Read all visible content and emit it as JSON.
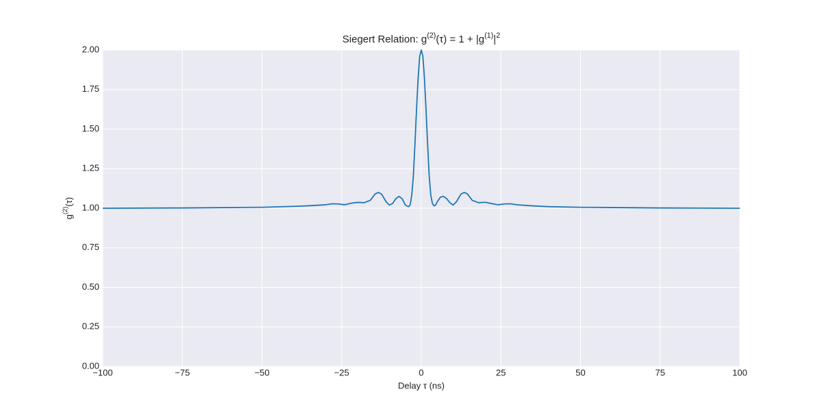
{
  "chart_data": {
    "type": "line",
    "title": [
      "Siegert Relation: g",
      "(2)",
      "(τ) = 1 + |g",
      "(1)",
      "|",
      "2"
    ],
    "x_label": "Delay τ (ns)",
    "y_label": [
      "g",
      "(2)",
      "(τ)"
    ],
    "x": [
      -100,
      -75,
      -50,
      -40,
      -35,
      -30,
      -28,
      -26,
      -24,
      -22,
      -20,
      -18,
      -16,
      -14.5,
      -13.5,
      -12.5,
      -11,
      -10,
      -9,
      -8,
      -7,
      -6,
      -5,
      -4,
      -3.5,
      -3,
      -2.5,
      -2,
      -1.5,
      -1,
      -0.5,
      0,
      0.5,
      1,
      1.5,
      2,
      2.5,
      3,
      3.5,
      4,
      4.5,
      5,
      6,
      7,
      8,
      9,
      10,
      11,
      12.5,
      13.5,
      14.5,
      16,
      18,
      20,
      22,
      24,
      26,
      28,
      30,
      35,
      40,
      50,
      75,
      100
    ],
    "series": [
      {
        "color": "#1f77b4",
        "values": [
          1.0,
          1.002,
          1.006,
          1.012,
          1.016,
          1.022,
          1.028,
          1.027,
          1.022,
          1.032,
          1.037,
          1.035,
          1.05,
          1.09,
          1.1,
          1.09,
          1.04,
          1.02,
          1.03,
          1.06,
          1.075,
          1.06,
          1.02,
          1.01,
          1.02,
          1.08,
          1.2,
          1.4,
          1.62,
          1.82,
          1.96,
          2.0,
          1.96,
          1.82,
          1.62,
          1.4,
          1.2,
          1.08,
          1.03,
          1.015,
          1.02,
          1.04,
          1.07,
          1.075,
          1.06,
          1.035,
          1.02,
          1.04,
          1.09,
          1.1,
          1.09,
          1.05,
          1.035,
          1.038,
          1.03,
          1.022,
          1.027,
          1.028,
          1.022,
          1.015,
          1.01,
          1.006,
          1.002,
          1.0
        ]
      }
    ],
    "xlim": [
      -100,
      100
    ],
    "xticks": [
      {
        "value": -100,
        "label": "−100"
      },
      {
        "value": -75,
        "label": "−75"
      },
      {
        "value": -50,
        "label": "−50"
      },
      {
        "value": -25,
        "label": "−25"
      },
      0,
      25,
      50,
      75,
      100
    ],
    "ylim": [
      0,
      2
    ],
    "yticks": [
      {
        "value": 0,
        "label": "0.00"
      },
      {
        "value": 0.25,
        "label": "0.25"
      },
      {
        "value": 0.5,
        "label": "0.50"
      },
      {
        "value": 0.75,
        "label": "0.75"
      },
      {
        "value": 1,
        "label": "1.00"
      },
      {
        "value": 1.25,
        "label": "1.25"
      },
      {
        "value": 1.5,
        "label": "1.50"
      },
      {
        "value": 1.75,
        "label": "1.75"
      },
      {
        "value": 2,
        "label": "2.00"
      }
    ],
    "grid": true
  }
}
